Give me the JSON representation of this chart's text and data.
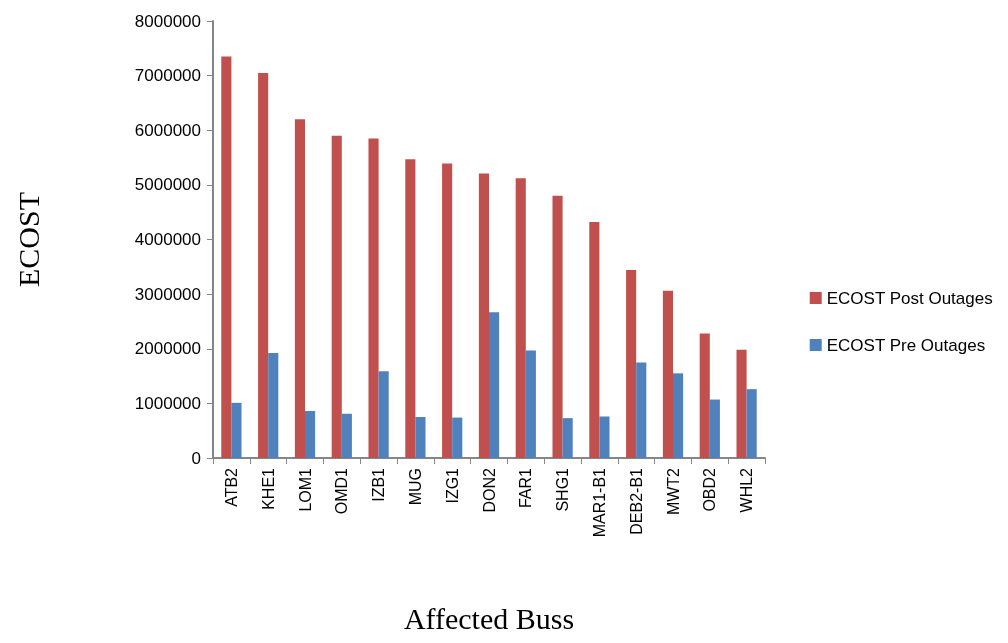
{
  "chart_data": {
    "type": "bar",
    "xlabel": "Affected Buss",
    "ylabel": "ECOST",
    "categories": [
      "ATB2",
      "KHE1",
      "LOM1",
      "OMD1",
      "IZB1",
      "MUG",
      "IZG1",
      "DON2",
      "FAR1",
      "SHG1",
      "MAR1-B1",
      "DEB2-B1",
      "MWT2",
      "OBD2",
      "WHL2"
    ],
    "series": [
      {
        "name": "ECOST Post Outages",
        "color": "#c0504d",
        "values": [
          7350000,
          7050000,
          6200000,
          5900000,
          5850000,
          5470000,
          5390000,
          5210000,
          5120000,
          4800000,
          4320000,
          3440000,
          3060000,
          2280000,
          1980000
        ]
      },
      {
        "name": "ECOST Pre Outages",
        "color": "#4f81bd",
        "values": [
          1010000,
          1920000,
          860000,
          810000,
          1590000,
          750000,
          740000,
          2670000,
          1970000,
          730000,
          760000,
          1750000,
          1550000,
          1070000,
          1260000
        ]
      }
    ],
    "ylim": [
      0,
      8000000
    ],
    "yticks": [
      0,
      1000000,
      2000000,
      3000000,
      4000000,
      5000000,
      6000000,
      7000000,
      8000000
    ],
    "grid": false,
    "legend": "right"
  }
}
